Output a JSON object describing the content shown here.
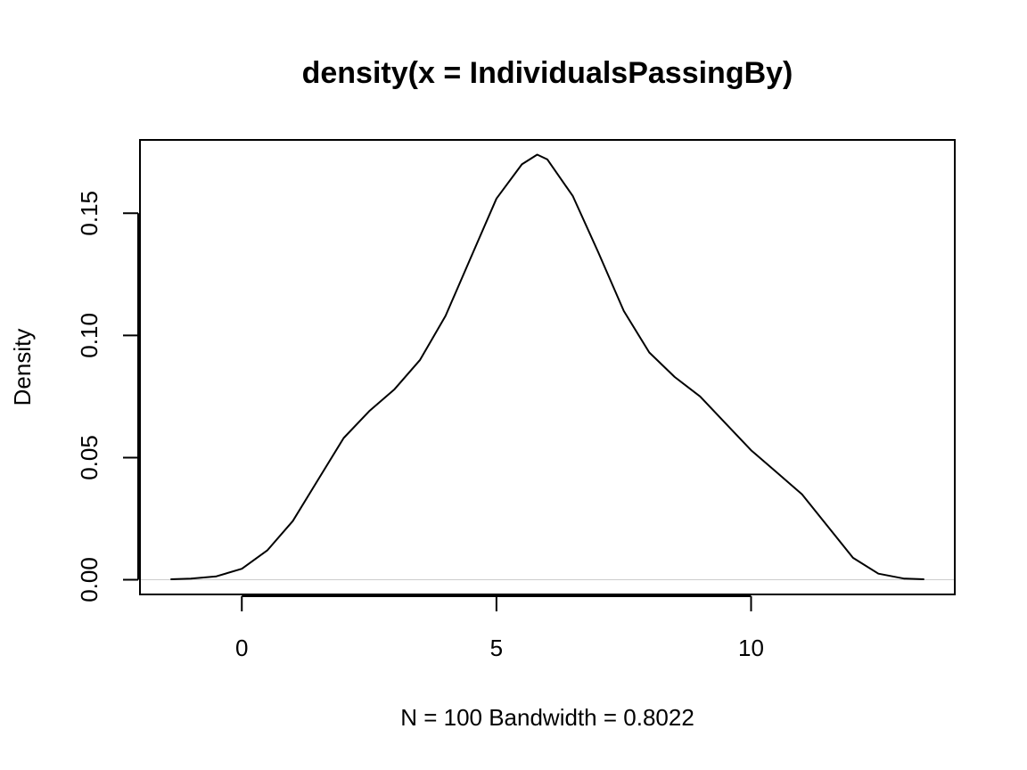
{
  "chart_data": {
    "type": "line",
    "title": "density(x = IndividualsPassingBy)",
    "xlabel": "N = 100   Bandwidth = 0.8022",
    "ylabel": "Density",
    "xlim": [
      -2,
      14
    ],
    "ylim": [
      -0.006,
      0.18
    ],
    "xticks": [
      0,
      5,
      10
    ],
    "xtick_labels": [
      "0",
      "5",
      "10"
    ],
    "yticks": [
      0.0,
      0.05,
      0.1,
      0.15
    ],
    "ytick_labels": [
      "0.00",
      "0.05",
      "0.10",
      "0.15"
    ],
    "grid": false,
    "legend": "none",
    "baseline_y": 0,
    "line_color": "#000000",
    "baseline_color": "#cccccc",
    "series": [
      {
        "x": [
          -1.4,
          -1.0,
          -0.5,
          0.0,
          0.5,
          1.0,
          1.5,
          2.0,
          2.5,
          3.0,
          3.5,
          4.0,
          4.5,
          5.0,
          5.5,
          5.8,
          6.0,
          6.5,
          7.0,
          7.5,
          8.0,
          8.5,
          9.0,
          9.5,
          10.0,
          10.5,
          11.0,
          11.5,
          12.0,
          12.5,
          13.0,
          13.4
        ],
        "y": [
          0.0002,
          0.0005,
          0.0014,
          0.0045,
          0.012,
          0.024,
          0.041,
          0.058,
          0.069,
          0.078,
          0.09,
          0.108,
          0.132,
          0.156,
          0.17,
          0.174,
          0.172,
          0.157,
          0.134,
          0.11,
          0.093,
          0.083,
          0.075,
          0.064,
          0.053,
          0.044,
          0.035,
          0.022,
          0.009,
          0.0025,
          0.0005,
          0.0002
        ]
      }
    ]
  }
}
